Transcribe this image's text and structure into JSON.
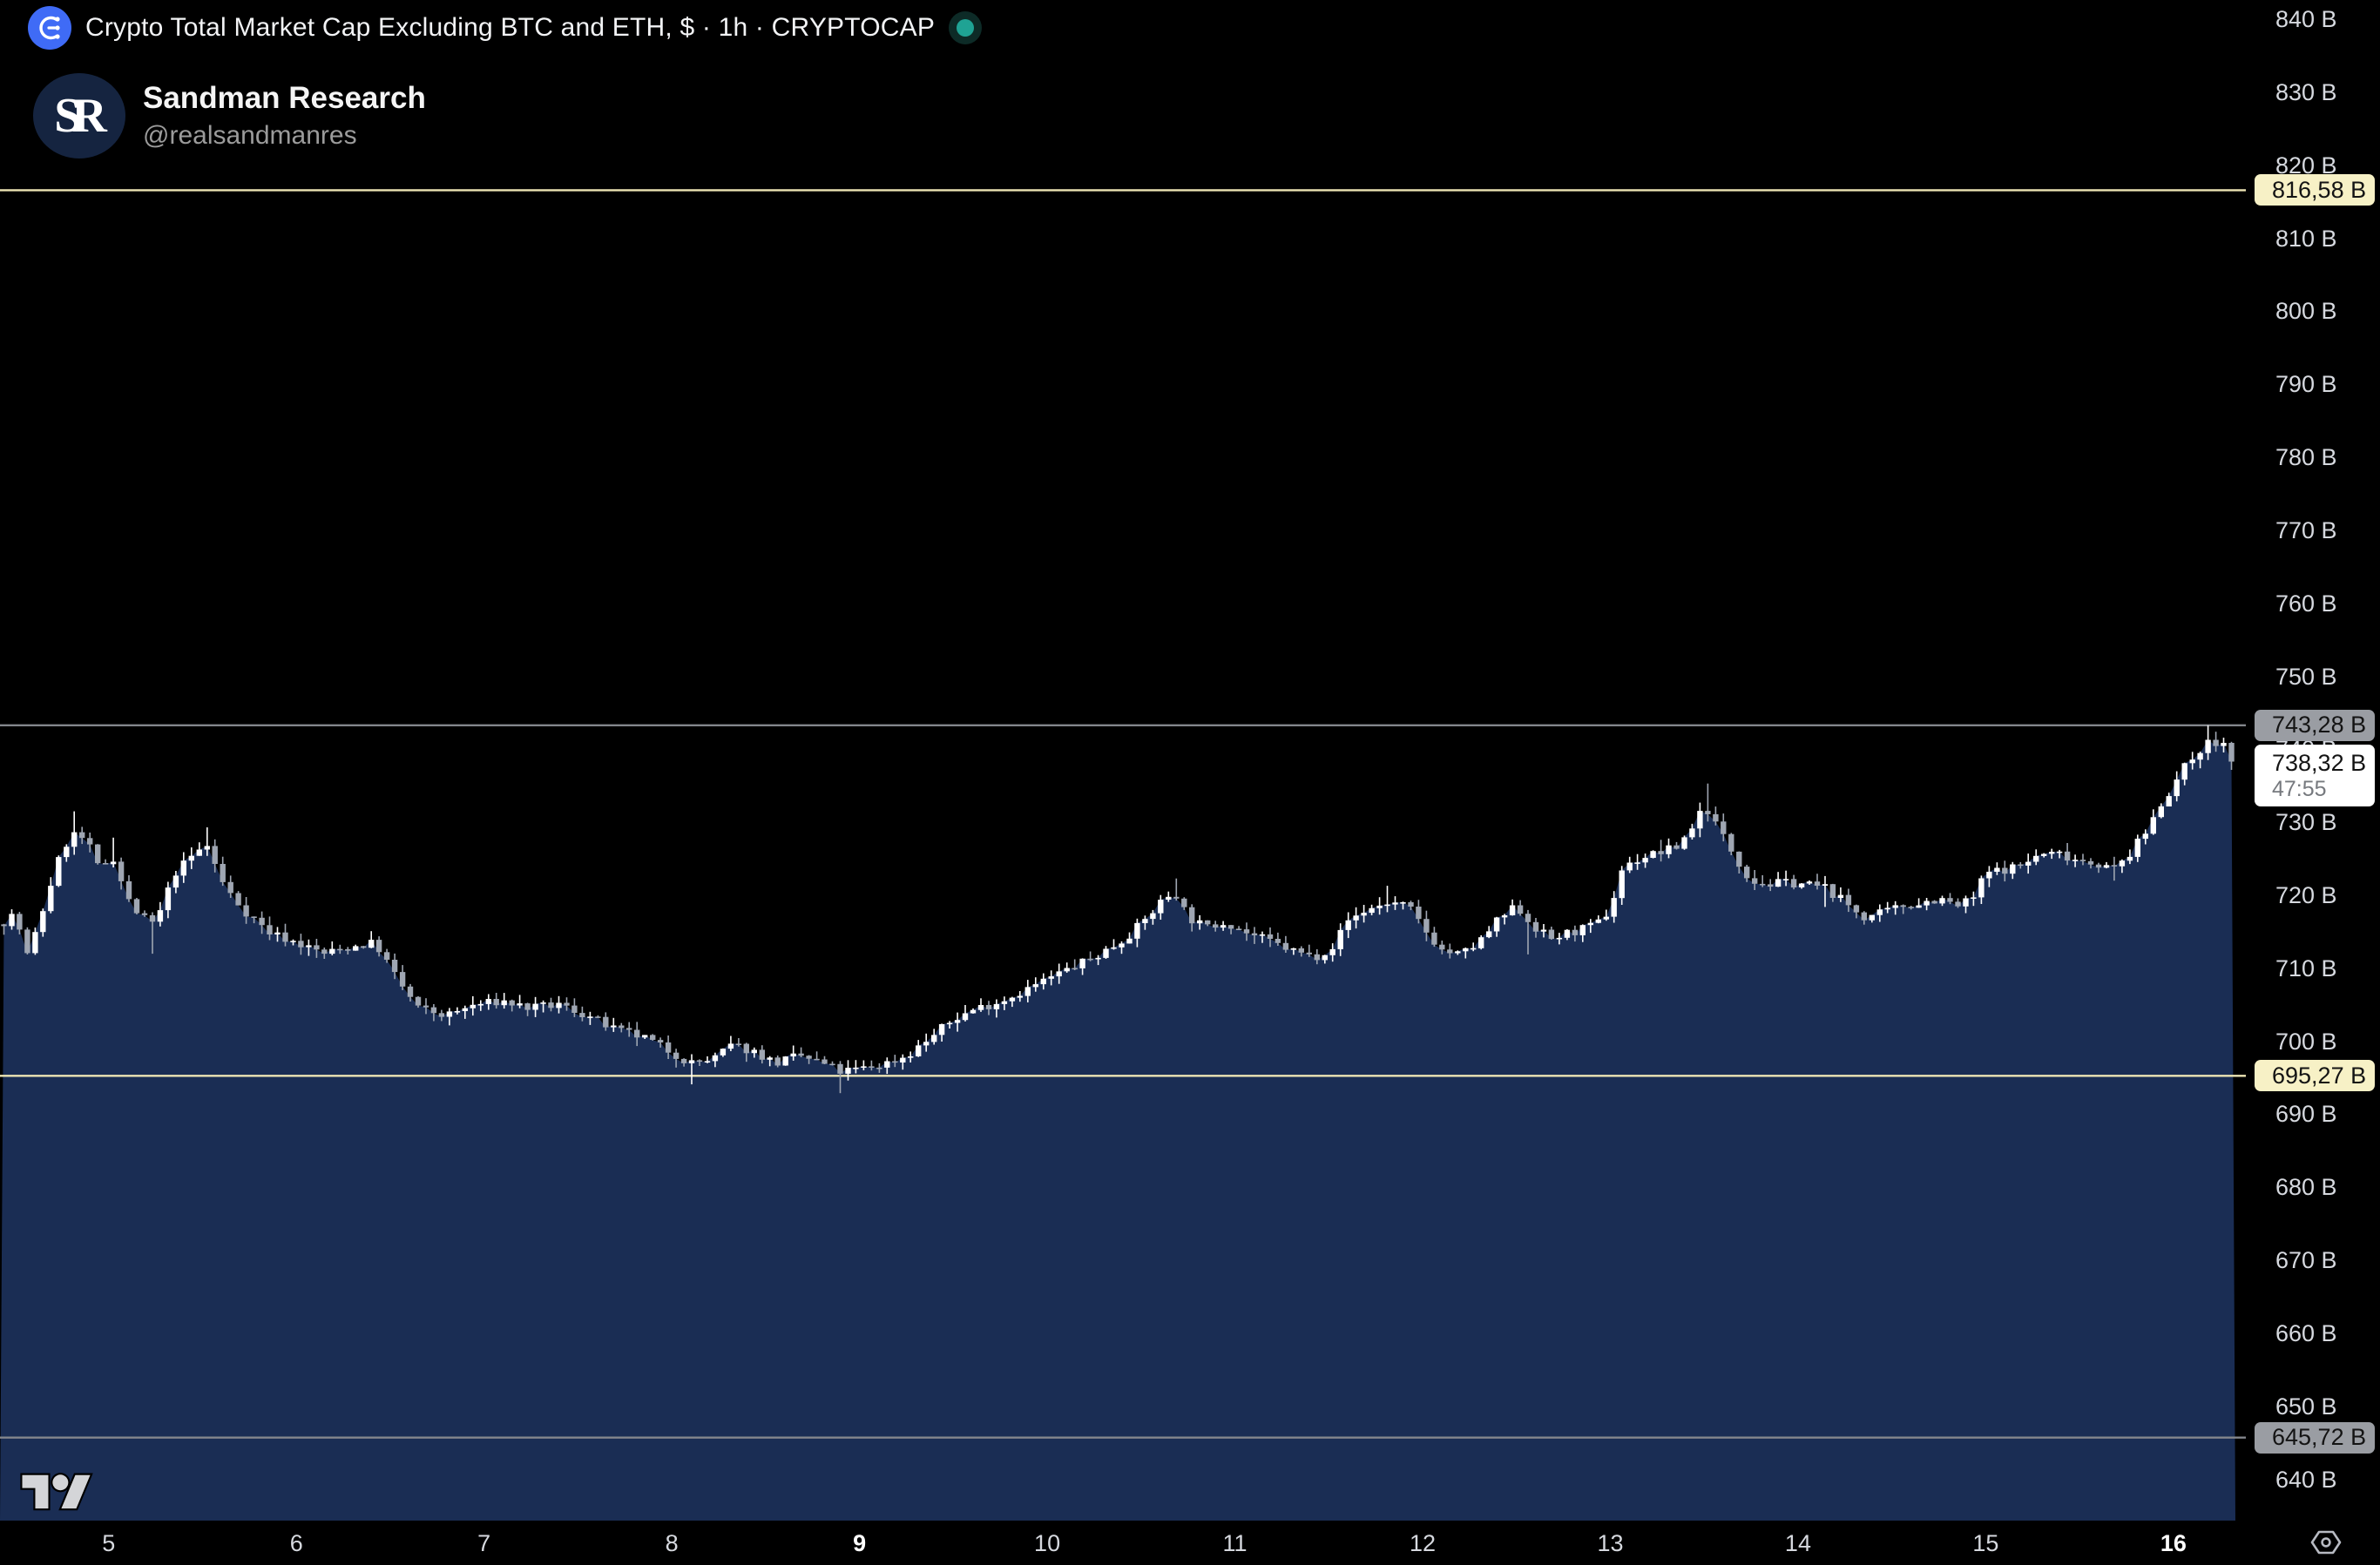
{
  "header": {
    "title": "Crypto Total Market Cap Excluding BTC and ETH, $ · 1h · CRYPTOCAP",
    "market_status": "open"
  },
  "watermark": {
    "name": "Sandman Research",
    "handle": "@realsandmanres",
    "avatar_initials": "SR"
  },
  "colors": {
    "background": "#000000",
    "area_fill": "#1a2d54",
    "candle_up": "#ffffff",
    "candle_down": "#9fa6b2",
    "axis_text": "#d6d9df",
    "level_yellow_line": "#eee6b5",
    "level_yellow_bg": "#f7f1c6",
    "level_gray_line": "#83868c",
    "level_gray_bg": "#9a9da3",
    "last_label_bg": "#ffffff",
    "countdown_text": "#76797e",
    "accent_blue": "#3f6bf6",
    "status_green": "#1fa394",
    "status_ring": "#0d2b27",
    "avatar_bg": "#152440",
    "tv_logo": "#d4d5d8"
  },
  "chart_data": {
    "type": "candlestick_with_area",
    "title": "Crypto Total Market Cap Excluding BTC and ETH",
    "symbol": "CRYPTOCAP",
    "currency": "$",
    "interval": "1h",
    "unit": "billions USD",
    "y_axis": {
      "ylim": [
        634.35,
        842.63
      ],
      "ticks": [
        {
          "v": 840,
          "label": "840 B"
        },
        {
          "v": 830,
          "label": "830 B"
        },
        {
          "v": 820,
          "label": "820 B"
        },
        {
          "v": 810,
          "label": "810 B"
        },
        {
          "v": 800,
          "label": "800 B"
        },
        {
          "v": 790,
          "label": "790 B"
        },
        {
          "v": 780,
          "label": "780 B"
        },
        {
          "v": 770,
          "label": "770 B"
        },
        {
          "v": 760,
          "label": "760 B"
        },
        {
          "v": 750,
          "label": "750 B"
        },
        {
          "v": 740,
          "label": "740 B"
        },
        {
          "v": 730,
          "label": "730 B"
        },
        {
          "v": 720,
          "label": "720 B"
        },
        {
          "v": 710,
          "label": "710 B"
        },
        {
          "v": 700,
          "label": "700 B"
        },
        {
          "v": 690,
          "label": "690 B"
        },
        {
          "v": 680,
          "label": "680 B"
        },
        {
          "v": 670,
          "label": "670 B"
        },
        {
          "v": 660,
          "label": "660 B"
        },
        {
          "v": 650,
          "label": "650 B"
        },
        {
          "v": 640,
          "label": "640 B"
        }
      ]
    },
    "x_axis": {
      "day_start": 4.421,
      "day_end": 16.33,
      "ticks": [
        {
          "d": 5,
          "label": "5",
          "bold": false
        },
        {
          "d": 6,
          "label": "6",
          "bold": false
        },
        {
          "d": 7,
          "label": "7",
          "bold": false
        },
        {
          "d": 8,
          "label": "8",
          "bold": false
        },
        {
          "d": 9,
          "label": "9",
          "bold": true
        },
        {
          "d": 10,
          "label": "10",
          "bold": false
        },
        {
          "d": 11,
          "label": "11",
          "bold": false
        },
        {
          "d": 12,
          "label": "12",
          "bold": false
        },
        {
          "d": 13,
          "label": "13",
          "bold": false
        },
        {
          "d": 14,
          "label": "14",
          "bold": false
        },
        {
          "d": 15,
          "label": "15",
          "bold": false
        },
        {
          "d": 16,
          "label": "16",
          "bold": true
        }
      ]
    },
    "levels": [
      {
        "value": 816.58,
        "label": "816,58 B",
        "style": "yellow"
      },
      {
        "value": 743.28,
        "label": "743,28 B",
        "style": "gray"
      },
      {
        "value": 695.27,
        "label": "695,27 B",
        "style": "yellow"
      },
      {
        "value": 645.72,
        "label": "645,72 B",
        "style": "gray"
      }
    ],
    "last_price": {
      "value": 738.32,
      "label": "738,32 B",
      "countdown": "47:55"
    },
    "candle_count": 286,
    "seed": 7,
    "anchors": [
      {
        "d": 4.42,
        "c": 716
      },
      {
        "d": 4.5,
        "c": 717.5
      },
      {
        "d": 4.57,
        "c": 711.5
      },
      {
        "d": 4.65,
        "c": 718
      },
      {
        "d": 4.72,
        "c": 724
      },
      {
        "d": 4.8,
        "c": 728.5,
        "hi": 731.5
      },
      {
        "d": 4.88,
        "c": 727.5
      },
      {
        "d": 4.95,
        "c": 723.5
      },
      {
        "d": 5.02,
        "c": 725.5,
        "hi": 727.9
      },
      {
        "d": 5.1,
        "c": 719.5
      },
      {
        "d": 5.17,
        "c": 717
      },
      {
        "d": 5.25,
        "c": 716,
        "lo": 712
      },
      {
        "d": 5.35,
        "c": 723
      },
      {
        "d": 5.45,
        "c": 725.5
      },
      {
        "d": 5.52,
        "c": 727,
        "hi": 729.3
      },
      {
        "d": 5.62,
        "c": 721
      },
      {
        "d": 5.72,
        "c": 718
      },
      {
        "d": 5.85,
        "c": 715
      },
      {
        "d": 6.0,
        "c": 713.5
      },
      {
        "d": 6.15,
        "c": 712
      },
      {
        "d": 6.3,
        "c": 713
      },
      {
        "d": 6.42,
        "c": 713.5
      },
      {
        "d": 6.55,
        "c": 708
      },
      {
        "d": 6.65,
        "c": 704.5
      },
      {
        "d": 6.8,
        "c": 703.5
      },
      {
        "d": 6.95,
        "c": 705
      },
      {
        "d": 7.1,
        "c": 705.5
      },
      {
        "d": 7.25,
        "c": 704.5
      },
      {
        "d": 7.4,
        "c": 705
      },
      {
        "d": 7.55,
        "c": 703.5
      },
      {
        "d": 7.7,
        "c": 701.5
      },
      {
        "d": 7.85,
        "c": 700.5
      },
      {
        "d": 8.0,
        "c": 698.5
      },
      {
        "d": 8.1,
        "c": 697,
        "lo": 694.1
      },
      {
        "d": 8.22,
        "c": 697.5
      },
      {
        "d": 8.32,
        "c": 699.5
      },
      {
        "d": 8.45,
        "c": 698.5
      },
      {
        "d": 8.55,
        "c": 697
      },
      {
        "d": 8.68,
        "c": 698
      },
      {
        "d": 8.8,
        "c": 697
      },
      {
        "d": 8.9,
        "c": 695.8,
        "lo": 692.9
      },
      {
        "d": 9.0,
        "c": 696.2
      },
      {
        "d": 9.12,
        "c": 696.8
      },
      {
        "d": 9.25,
        "c": 698
      },
      {
        "d": 9.38,
        "c": 700.5
      },
      {
        "d": 9.5,
        "c": 703
      },
      {
        "d": 9.62,
        "c": 704.5
      },
      {
        "d": 9.75,
        "c": 705.5
      },
      {
        "d": 9.88,
        "c": 707
      },
      {
        "d": 10.0,
        "c": 708.5
      },
      {
        "d": 10.12,
        "c": 710
      },
      {
        "d": 10.25,
        "c": 711.5
      },
      {
        "d": 10.38,
        "c": 713.5
      },
      {
        "d": 10.5,
        "c": 716
      },
      {
        "d": 10.62,
        "c": 719.5
      },
      {
        "d": 10.68,
        "c": 720.5,
        "hi": 722.3
      },
      {
        "d": 10.75,
        "c": 717
      },
      {
        "d": 10.85,
        "c": 715.5
      },
      {
        "d": 10.95,
        "c": 716.5
      },
      {
        "d": 11.05,
        "c": 715
      },
      {
        "d": 11.15,
        "c": 714
      },
      {
        "d": 11.3,
        "c": 712.5
      },
      {
        "d": 11.42,
        "c": 711.5
      },
      {
        "d": 11.52,
        "c": 713
      },
      {
        "d": 11.6,
        "c": 716.5
      },
      {
        "d": 11.7,
        "c": 718
      },
      {
        "d": 11.82,
        "c": 719,
        "hi": 721.3
      },
      {
        "d": 11.92,
        "c": 718.5
      },
      {
        "d": 12.02,
        "c": 715
      },
      {
        "d": 12.1,
        "c": 712.5
      },
      {
        "d": 12.2,
        "c": 711.8
      },
      {
        "d": 12.3,
        "c": 713.5
      },
      {
        "d": 12.4,
        "c": 716.5
      },
      {
        "d": 12.5,
        "c": 718.5
      },
      {
        "d": 12.58,
        "c": 716,
        "lo": 711.9
      },
      {
        "d": 12.68,
        "c": 714
      },
      {
        "d": 12.8,
        "c": 715
      },
      {
        "d": 12.92,
        "c": 715.8
      },
      {
        "d": 13.0,
        "c": 718
      },
      {
        "d": 13.06,
        "c": 723.5
      },
      {
        "d": 13.15,
        "c": 725
      },
      {
        "d": 13.25,
        "c": 725.8,
        "hi": 727.6
      },
      {
        "d": 13.35,
        "c": 726.5
      },
      {
        "d": 13.44,
        "c": 729.5
      },
      {
        "d": 13.5,
        "c": 732.5,
        "hi": 735.3
      },
      {
        "d": 13.58,
        "c": 729
      },
      {
        "d": 13.66,
        "c": 725.5
      },
      {
        "d": 13.75,
        "c": 722
      },
      {
        "d": 13.85,
        "c": 721.5
      },
      {
        "d": 13.95,
        "c": 721.8
      },
      {
        "d": 14.05,
        "c": 721.5
      },
      {
        "d": 14.15,
        "c": 721,
        "lo": 718.4
      },
      {
        "d": 14.25,
        "c": 719
      },
      {
        "d": 14.35,
        "c": 717
      },
      {
        "d": 14.45,
        "c": 717.5
      },
      {
        "d": 14.55,
        "c": 718.5
      },
      {
        "d": 14.65,
        "c": 719
      },
      {
        "d": 14.75,
        "c": 719.5
      },
      {
        "d": 14.85,
        "c": 718.5
      },
      {
        "d": 14.93,
        "c": 719.5
      },
      {
        "d": 15.0,
        "c": 723
      },
      {
        "d": 15.08,
        "c": 723.5
      },
      {
        "d": 15.18,
        "c": 724
      },
      {
        "d": 15.28,
        "c": 725.5
      },
      {
        "d": 15.38,
        "c": 725.8
      },
      {
        "d": 15.48,
        "c": 725
      },
      {
        "d": 15.58,
        "c": 724.5
      },
      {
        "d": 15.68,
        "c": 723.5,
        "lo": 722
      },
      {
        "d": 15.78,
        "c": 726
      },
      {
        "d": 15.86,
        "c": 729
      },
      {
        "d": 15.93,
        "c": 732.5
      },
      {
        "d": 16.0,
        "c": 735
      },
      {
        "d": 16.06,
        "c": 737.5
      },
      {
        "d": 16.12,
        "c": 739.5
      },
      {
        "d": 16.18,
        "c": 741,
        "hi": 743.28
      },
      {
        "d": 16.23,
        "c": 740.5
      },
      {
        "d": 16.27,
        "c": 741
      },
      {
        "d": 16.3,
        "c": 739.5
      },
      {
        "d": 16.33,
        "c": 738.32
      }
    ]
  }
}
